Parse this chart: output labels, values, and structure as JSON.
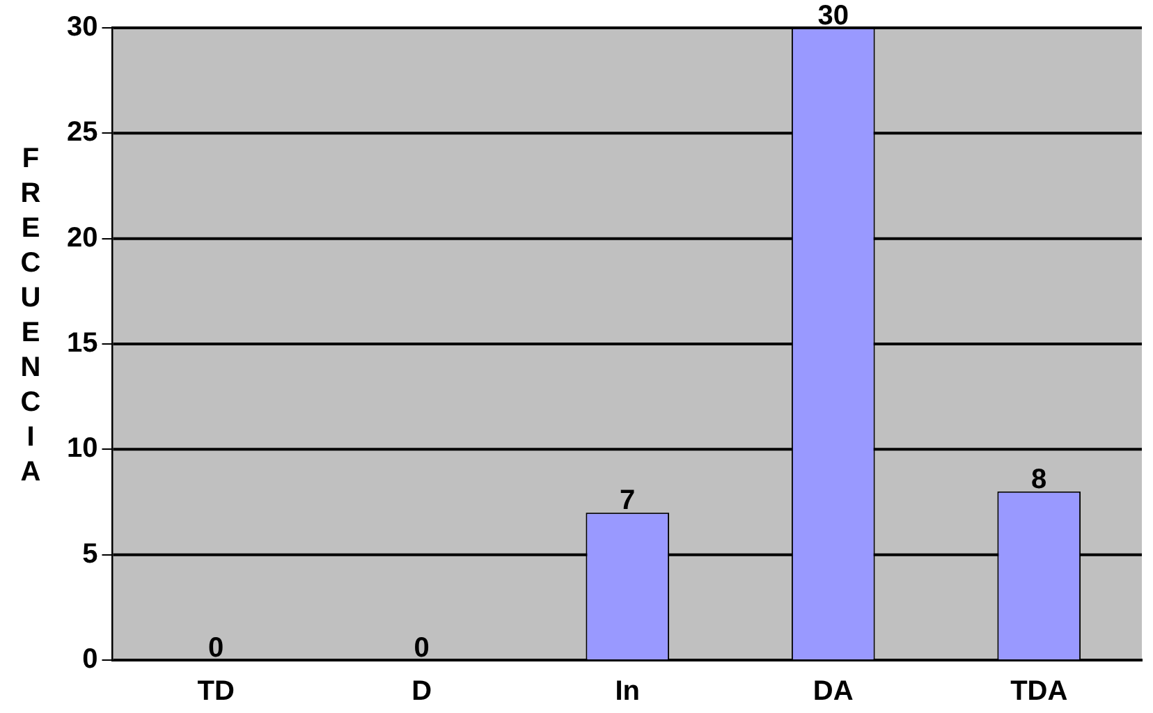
{
  "chart_data": {
    "type": "bar",
    "ylabel": "FRECUENCIA",
    "categories": [
      "TD",
      "D",
      "In",
      "DA",
      "TDA"
    ],
    "values": [
      0,
      0,
      7,
      30,
      8
    ],
    "color": "#9999ff",
    "ylim": [
      0,
      30
    ],
    "yticks": [
      0,
      5,
      10,
      15,
      20,
      25,
      30
    ],
    "grid": "y",
    "legend": false,
    "data_labels": true
  }
}
